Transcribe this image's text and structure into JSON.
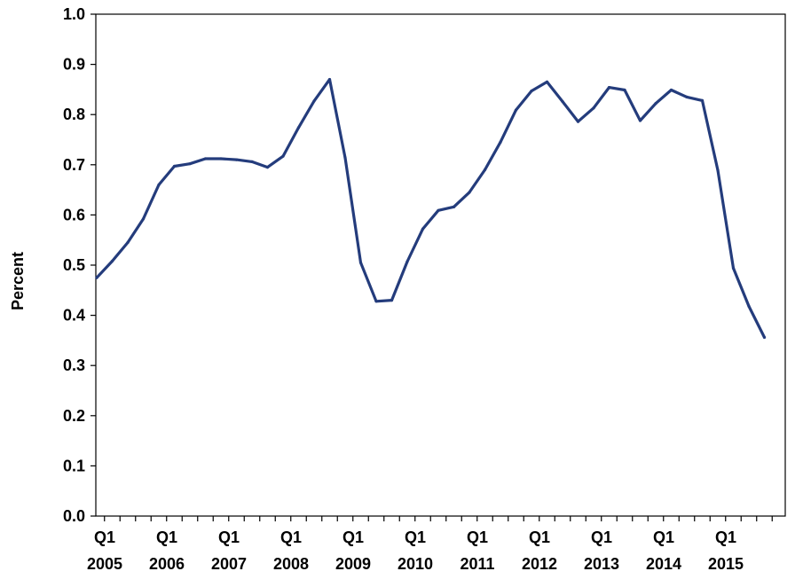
{
  "chart_data": {
    "type": "line",
    "title": "",
    "xlabel": "",
    "ylabel": "Percent",
    "ylim": [
      0.0,
      1.0
    ],
    "y_ticks": [
      "0.0",
      "0.1",
      "0.2",
      "0.3",
      "0.4",
      "0.5",
      "0.6",
      "0.7",
      "0.8",
      "0.9",
      "1.0"
    ],
    "x_tick_labels": [
      {
        "line1": "Q1",
        "line2": "2005"
      },
      {
        "line1": "Q1",
        "line2": "2006"
      },
      {
        "line1": "Q1",
        "line2": "2007"
      },
      {
        "line1": "Q1",
        "line2": "2008"
      },
      {
        "line1": "Q1",
        "line2": "2009"
      },
      {
        "line1": "Q1",
        "line2": "2010"
      },
      {
        "line1": "Q1",
        "line2": "2011"
      },
      {
        "line1": "Q1",
        "line2": "2012"
      },
      {
        "line1": "Q1",
        "line2": "2013"
      },
      {
        "line1": "Q1",
        "line2": "2014"
      },
      {
        "line1": "Q1",
        "line2": "2015"
      }
    ],
    "grid": false,
    "line_color": "#243C7C",
    "series": [
      {
        "x": [
          "2005 Q1",
          "2005 Q2",
          "2005 Q3",
          "2005 Q4",
          "2006 Q1",
          "2006 Q2",
          "2006 Q3",
          "2006 Q4",
          "2007 Q1",
          "2007 Q2",
          "2007 Q3",
          "2007 Q4",
          "2008 Q1",
          "2008 Q2",
          "2008 Q3",
          "2008 Q4",
          "2009 Q1",
          "2009 Q2",
          "2009 Q3",
          "2009 Q4",
          "2010 Q1",
          "2010 Q2",
          "2010 Q3",
          "2010 Q4",
          "2011 Q1",
          "2011 Q2",
          "2011 Q3",
          "2011 Q4",
          "2012 Q1",
          "2012 Q2",
          "2012 Q3",
          "2012 Q4",
          "2013 Q1",
          "2013 Q2",
          "2013 Q3",
          "2013 Q4",
          "2014 Q1",
          "2014 Q2",
          "2014 Q3",
          "2014 Q4",
          "2015 Q1",
          "2015 Q2",
          "2015 Q3",
          "2015 Q4"
        ],
        "values": [
          0.475,
          0.508,
          0.545,
          0.592,
          0.66,
          0.697,
          0.702,
          0.712,
          0.712,
          0.71,
          0.706,
          0.695,
          0.717,
          0.774,
          0.827,
          0.87,
          0.714,
          0.505,
          0.428,
          0.43,
          0.507,
          0.572,
          0.609,
          0.616,
          0.645,
          0.69,
          0.745,
          0.809,
          0.847,
          0.865,
          0.826,
          0.786,
          0.813,
          0.854,
          0.849,
          0.788,
          0.822,
          0.849,
          0.835,
          0.828,
          0.689,
          0.494,
          0.418,
          0.356
        ]
      }
    ]
  }
}
